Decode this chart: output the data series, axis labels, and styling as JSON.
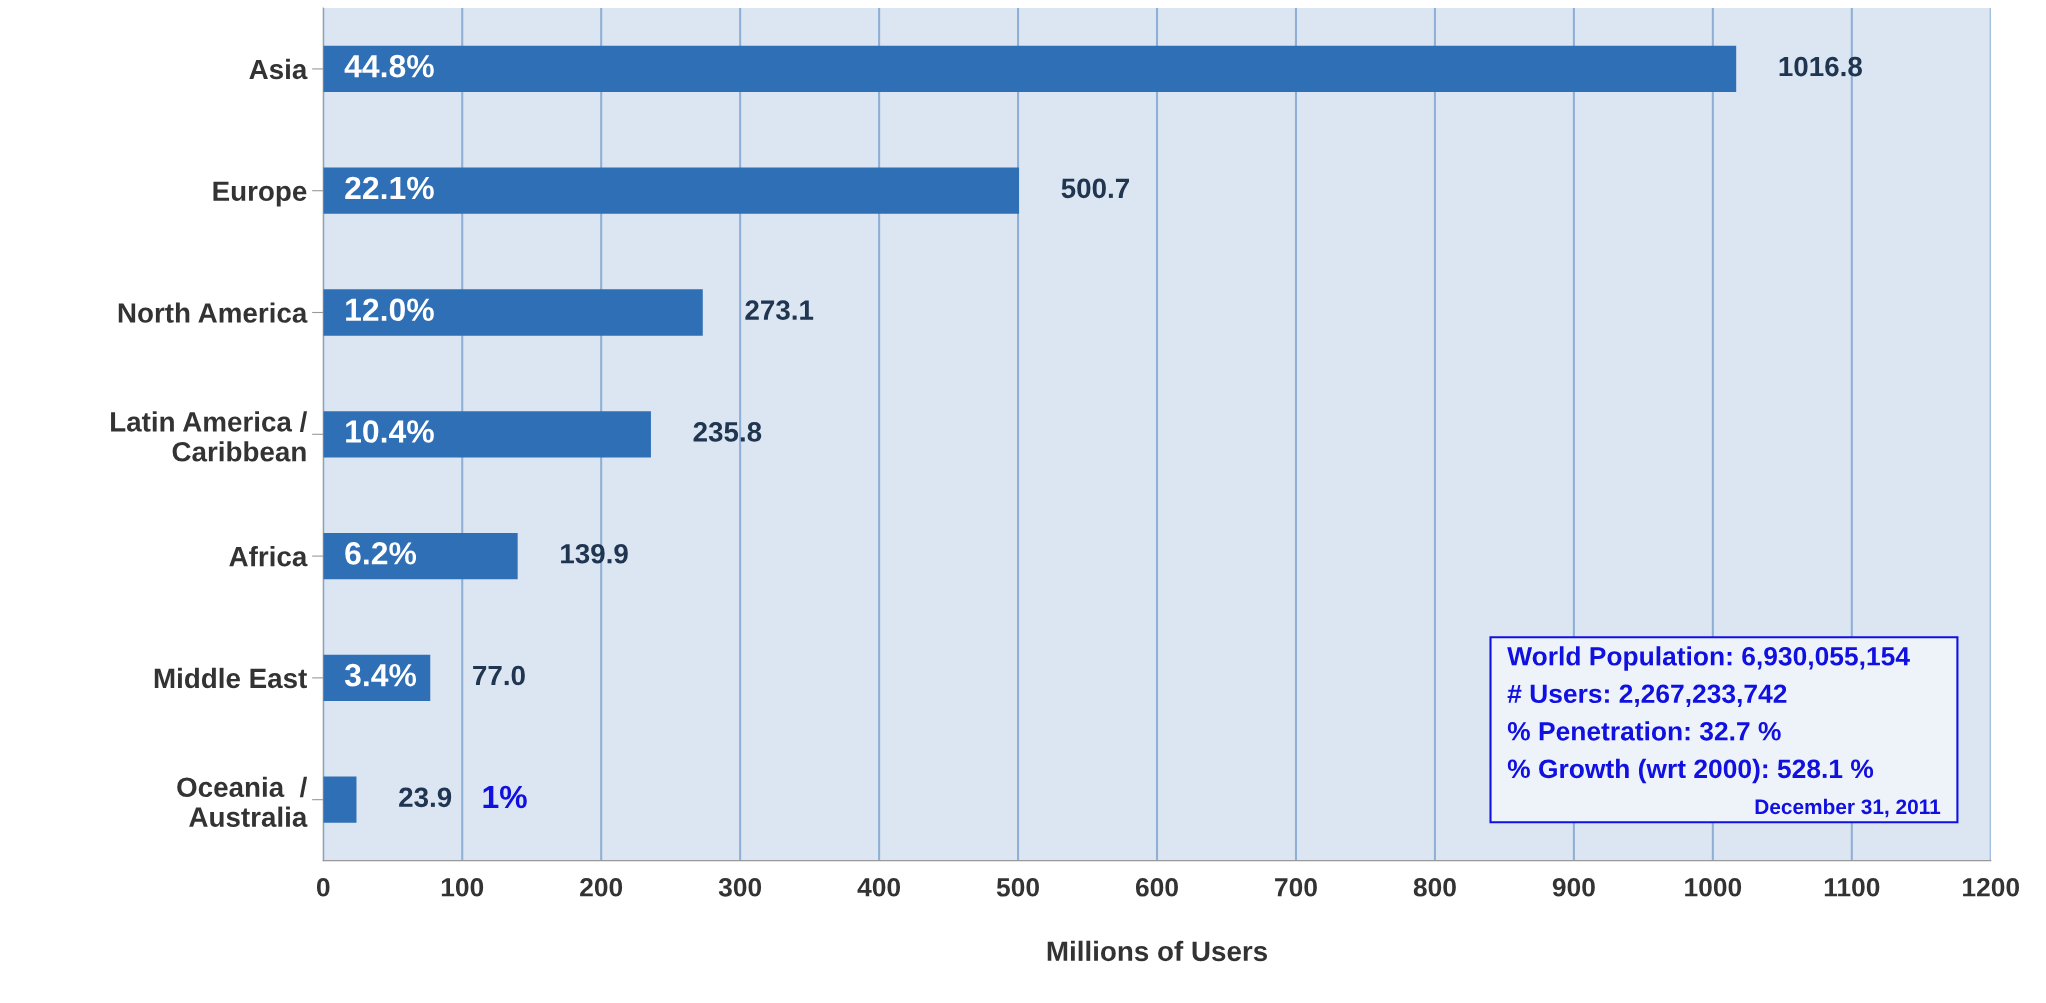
{
  "chart_data": {
    "type": "bar",
    "orientation": "horizontal",
    "xlabel": "Millions of Users",
    "categories": [
      "Asia",
      "Europe",
      "North America",
      "Latin America /\nCaribbean",
      "Africa",
      "Middle East",
      "Oceania  /\nAustralia"
    ],
    "values": [
      1016.8,
      500.7,
      273.1,
      235.8,
      139.9,
      77.0,
      23.9
    ],
    "value_labels": [
      "1016.8",
      "500.7",
      "273.1",
      "235.8",
      "139.9",
      "77.0",
      "23.9"
    ],
    "color": "#2f6fb6",
    "xlim": [
      0,
      1200
    ],
    "xticks": [
      0,
      100,
      200,
      300,
      400,
      500,
      600,
      700,
      800,
      900,
      1000,
      1100,
      1200
    ],
    "grid": "x",
    "annotations": [
      "44.8%",
      "22.1%",
      "12.0%",
      "10.4%",
      "6.2%",
      "3.4%",
      "1%",
      "World Population: 6,930,055,154",
      "# Users: 2,267,233,742",
      "% Penetration: 32.7 %",
      "% Growth (wrt 2000): 528.1 %",
      "December 31, 2011"
    ]
  }
}
